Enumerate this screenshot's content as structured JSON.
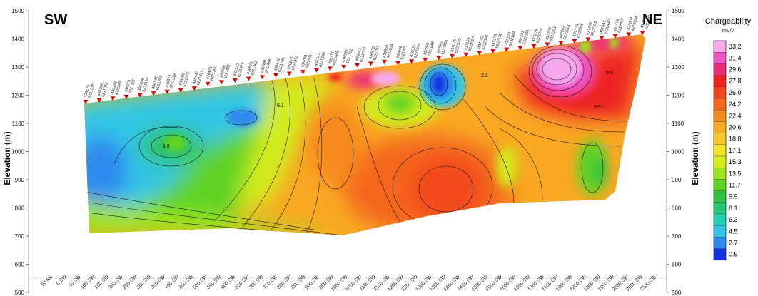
{
  "chart_data": {
    "type": "heatmap",
    "title": "",
    "ylabel": "Elevation (m)",
    "ylabel_right": "Elevation (m)",
    "ylim": [
      500,
      1500
    ],
    "yticks": [
      500,
      600,
      700,
      800,
      900,
      1000,
      1100,
      1200,
      1300,
      1400,
      1500
    ],
    "direction_labels": {
      "left": "SW",
      "right": "NE"
    },
    "x_positions": [
      "50 NE",
      "0 SW",
      "50 SW",
      "100 SW",
      "150 SW",
      "200 SW",
      "250 SW",
      "300 SW",
      "350 SW",
      "400 SW",
      "450 SW",
      "500 SW",
      "550 SW",
      "600 SW",
      "650 SW",
      "700 SW",
      "750 SW",
      "800 SW",
      "850 SW",
      "900 SW",
      "950 SW",
      "1000 SW",
      "1050 SW",
      "1100 SW",
      "1150 SW",
      "1200 SW",
      "1250 SW",
      "1300 SW",
      "1350 SW",
      "1400 SW",
      "1450 SW",
      "1500 SW",
      "1550 SW",
      "1600 SW",
      "1650 SW",
      "1700 SW",
      "1750 SW",
      "1800 SW",
      "1850 SW",
      "1900 SW",
      "1950 SW",
      "2000 SW",
      "2050 SW",
      "2100 SW"
    ],
    "stations": [
      {
        "e": "436175",
        "n": "6221015"
      },
      {
        "e": "436208",
        "n": "6221052"
      },
      {
        "e": "436242",
        "n": "6221089"
      },
      {
        "e": "436275",
        "n": "6221127"
      },
      {
        "e": "436308",
        "n": "6221164"
      },
      {
        "e": "436342",
        "n": "6221200"
      },
      {
        "e": "436375",
        "n": "6221238"
      },
      {
        "e": "436408",
        "n": "6221275"
      },
      {
        "e": "436442",
        "n": "6221313"
      },
      {
        "e": "436475",
        "n": "6221350"
      },
      {
        "e": "436508",
        "n": "6221387"
      },
      {
        "e": "436542",
        "n": "6221425"
      },
      {
        "e": "436575",
        "n": "6221462"
      },
      {
        "e": "436609",
        "n": "6221499"
      },
      {
        "e": "436642",
        "n": "6221536"
      },
      {
        "e": "436675",
        "n": "6221572"
      },
      {
        "e": "436709",
        "n": "6221611"
      },
      {
        "e": "436742",
        "n": "6221648"
      },
      {
        "e": "436775",
        "n": "6221685"
      },
      {
        "e": "436809",
        "n": "6221722"
      },
      {
        "e": "436842",
        "n": "6221760"
      },
      {
        "e": "436875",
        "n": "6221797"
      },
      {
        "e": "436909",
        "n": "6221834"
      },
      {
        "e": "436942",
        "n": "6221871"
      },
      {
        "e": "436975",
        "n": "6221909"
      },
      {
        "e": "437009",
        "n": "6221946"
      },
      {
        "e": "437042",
        "n": "6221983"
      },
      {
        "e": "437075",
        "n": "6222020"
      },
      {
        "e": "437109",
        "n": "6222057"
      },
      {
        "e": "437142",
        "n": "6222095"
      },
      {
        "e": "437175",
        "n": "6222132"
      },
      {
        "e": "437209",
        "n": "6222169"
      },
      {
        "e": "437242",
        "n": "6222206"
      },
      {
        "e": "437276",
        "n": "6222244"
      },
      {
        "e": "437309",
        "n": "6222281"
      },
      {
        "e": "437342",
        "n": "6222318"
      },
      {
        "e": "437376",
        "n": "6222355"
      },
      {
        "e": "437409",
        "n": "6222393"
      },
      {
        "e": "437442",
        "n": "6222430"
      },
      {
        "e": "437476",
        "n": "6222467"
      },
      {
        "e": "437509",
        "n": "6222504"
      },
      {
        "e": "437542",
        "n": "6222541"
      }
    ],
    "legend": {
      "title": "Chargeability",
      "unit": "mV/v",
      "values": [
        "33.2",
        "31.4",
        "29.6",
        "27.8",
        "26.0",
        "24.2",
        "22.4",
        "20.6",
        "18.8",
        "17.1",
        "15.3",
        "13.5",
        "11.7",
        "9.9",
        "8.1",
        "6.3",
        "4.5",
        "2.7",
        "0.9"
      ],
      "colors": [
        "#f7a8ec",
        "#f055c8",
        "#ee2a7a",
        "#ee2020",
        "#f2461e",
        "#f4661c",
        "#f78a1e",
        "#f8a823",
        "#fbc62c",
        "#f6e227",
        "#d2ec1c",
        "#9ee31c",
        "#5ed322",
        "#2fc23e",
        "#22c676",
        "#25d0ae",
        "#30c6e6",
        "#2f8aee",
        "#1230e0"
      ]
    },
    "contour_labels": [
      "1.0",
      "6.1",
      "3.0",
      "9.6",
      "2.1"
    ]
  }
}
